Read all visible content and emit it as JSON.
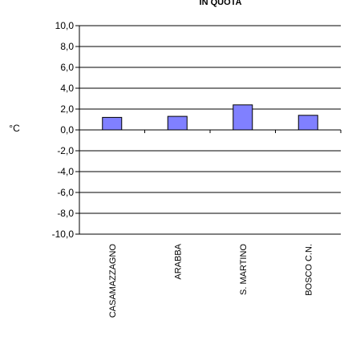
{
  "chart_data": {
    "type": "bar",
    "title": "IN QUOTA",
    "ylabel": "°C",
    "xlabel": "",
    "categories": [
      "CASAMAZZAGNO",
      "ARABBA",
      "S. MARTINO",
      "BOSCO C.N."
    ],
    "values": [
      1.2,
      1.3,
      2.4,
      1.4
    ],
    "ylim": [
      -10,
      10
    ],
    "yticks": [
      "10,0",
      "8,0",
      "6,0",
      "4,0",
      "2,0",
      "0,0",
      "-2,0",
      "-4,0",
      "-6,0",
      "-8,0",
      "-10,0"
    ],
    "ytick_values": [
      10,
      8,
      6,
      4,
      2,
      0,
      -2,
      -4,
      -6,
      -8,
      -10
    ],
    "grid": true,
    "legend": "none",
    "bar_color": "#8080ff",
    "bar_edge_color": "#000000"
  }
}
